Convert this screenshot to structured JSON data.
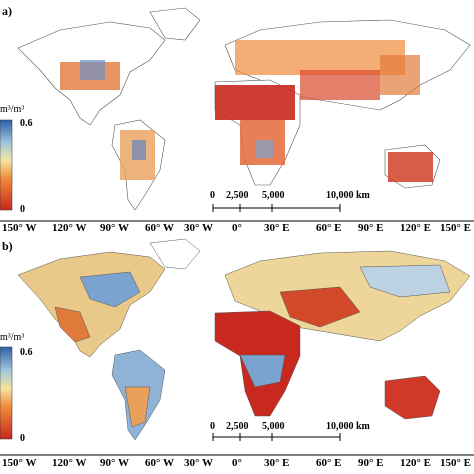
{
  "panels": [
    {
      "label": "a)",
      "colorbar": {
        "unit": "m³/m³",
        "max": "0.6",
        "min": "0"
      },
      "scalebar": [
        "0",
        "2,500",
        "5,000",
        "10,000 km"
      ]
    },
    {
      "label": "b)",
      "colorbar": {
        "unit": "m³/m³",
        "max": "0.6",
        "min": "0"
      },
      "scalebar": [
        "0",
        "2,500",
        "5,000",
        "10,000 km"
      ]
    }
  ],
  "longitude_labels": [
    "150° W",
    "120° W",
    "90° W",
    "60° W",
    "30° W",
    "0°",
    "30° E",
    "60° E",
    "90° E",
    "120° E",
    "150° E"
  ],
  "colors": {
    "dry": "#c8281e",
    "mid": "#f0d27a",
    "wet": "#2f5fa8",
    "land_outline": "#555555"
  }
}
